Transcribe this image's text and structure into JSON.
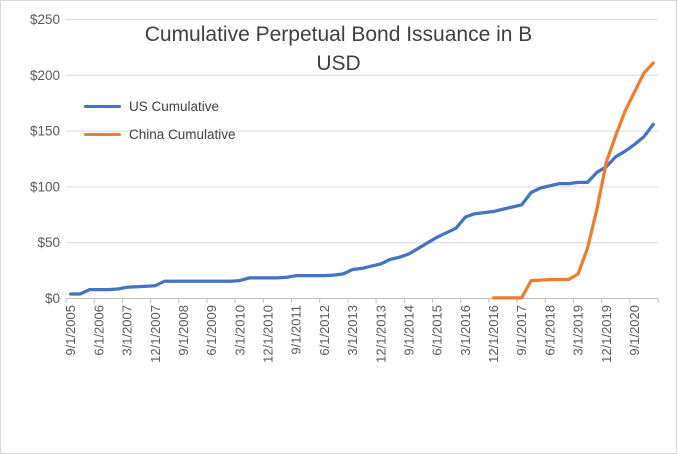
{
  "chart_data": {
    "type": "line",
    "title": "Cumulative Perpetual Bond Issuance in B USD",
    "title_lines": "Cumulative Perpetual Bond Issuance in B\nUSD",
    "xlabel": "",
    "ylabel": "",
    "ylim": [
      0,
      250
    ],
    "grid": true,
    "legend_position": "top-left-inside",
    "y_tick_labels": [
      "$0",
      "$50",
      "$100",
      "$150",
      "$200",
      "$250"
    ],
    "x_tick_labels": [
      "9/1/2005",
      "6/1/2006",
      "3/1/2007",
      "12/1/2007",
      "9/1/2008",
      "6/1/2009",
      "3/1/2010",
      "12/1/2010",
      "9/1/2011",
      "6/1/2012",
      "3/1/2013",
      "12/1/2013",
      "9/1/2014",
      "6/1/2015",
      "3/1/2016",
      "12/1/2016",
      "9/1/2017",
      "6/1/2018",
      "3/1/2019",
      "12/1/2019",
      "9/1/2020"
    ],
    "x": [
      "9/1/2005",
      "12/1/2005",
      "3/1/2006",
      "6/1/2006",
      "9/1/2006",
      "12/1/2006",
      "3/1/2007",
      "6/1/2007",
      "9/1/2007",
      "12/1/2007",
      "3/1/2008",
      "6/1/2008",
      "9/1/2008",
      "12/1/2008",
      "3/1/2009",
      "6/1/2009",
      "9/1/2009",
      "12/1/2009",
      "3/1/2010",
      "6/1/2010",
      "9/1/2010",
      "12/1/2010",
      "3/1/2011",
      "6/1/2011",
      "9/1/2011",
      "12/1/2011",
      "3/1/2012",
      "6/1/2012",
      "9/1/2012",
      "12/1/2012",
      "3/1/2013",
      "6/1/2013",
      "9/1/2013",
      "12/1/2013",
      "3/1/2014",
      "6/1/2014",
      "9/1/2014",
      "12/1/2014",
      "3/1/2015",
      "6/1/2015",
      "9/1/2015",
      "12/1/2015",
      "3/1/2016",
      "6/1/2016",
      "9/1/2016",
      "12/1/2016",
      "3/1/2017",
      "6/1/2017",
      "9/1/2017",
      "12/1/2017",
      "3/1/2018",
      "6/1/2018",
      "9/1/2018",
      "12/1/2018",
      "3/1/2019",
      "6/1/2019",
      "9/1/2019",
      "12/1/2019",
      "3/1/2020",
      "6/1/2020",
      "9/1/2020",
      "12/1/2020",
      "3/1/2021"
    ],
    "series": [
      {
        "name": "US Cumulative",
        "color": "#4472C4",
        "values": [
          4,
          4,
          8,
          8,
          8,
          8.5,
          10,
          10.5,
          11,
          11.5,
          15.5,
          15.5,
          15.5,
          15.5,
          15.5,
          15.5,
          15.5,
          15.5,
          16,
          18.5,
          18.5,
          18.5,
          18.5,
          19,
          20.5,
          20.5,
          20.5,
          20.5,
          21,
          22,
          26,
          27,
          29,
          31,
          35,
          37,
          40,
          45,
          50,
          55,
          59,
          63,
          73,
          76,
          77,
          78,
          80,
          82,
          84,
          95,
          99,
          101,
          103,
          103,
          104,
          104,
          113,
          118,
          127,
          132,
          138,
          145,
          156
        ]
      },
      {
        "name": "China Cumulative",
        "color": "#ED7D31",
        "values": [
          null,
          null,
          null,
          null,
          null,
          null,
          null,
          null,
          null,
          null,
          null,
          null,
          null,
          null,
          null,
          null,
          null,
          null,
          null,
          null,
          null,
          null,
          null,
          null,
          null,
          null,
          null,
          null,
          null,
          null,
          null,
          null,
          null,
          null,
          null,
          null,
          null,
          null,
          null,
          null,
          null,
          null,
          null,
          null,
          null,
          0.5,
          0.5,
          0.5,
          0.5,
          16,
          16.5,
          17,
          17,
          17,
          22,
          45,
          80,
          122,
          146,
          168,
          185,
          202,
          211
        ]
      }
    ],
    "colors": {
      "gridline": "#D9D9D9",
      "axis_line": "#BFBFBF",
      "tick_label": "#595959",
      "title_text": "#404040"
    }
  }
}
